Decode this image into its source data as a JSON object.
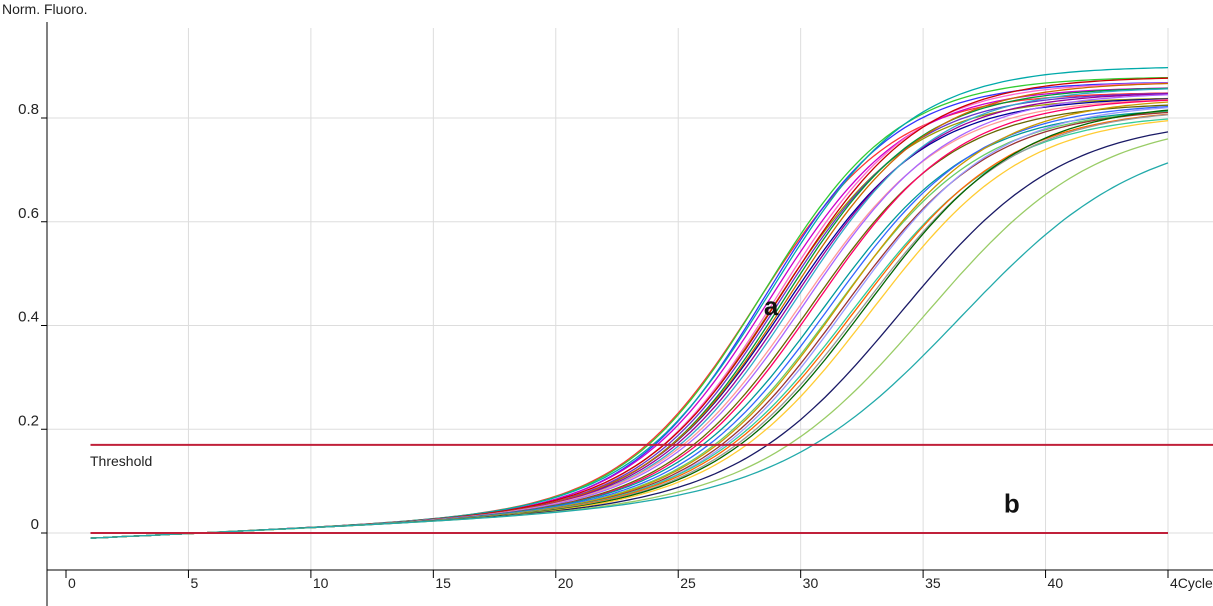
{
  "chart_data": {
    "type": "line",
    "ylabel": "Norm. Fluoro.",
    "xlabel": "Cycle",
    "xlim": [
      0,
      45
    ],
    "ylim": [
      -0.02,
      0.92
    ],
    "x_ticks": [
      0,
      5,
      10,
      15,
      20,
      25,
      30,
      35,
      40,
      45
    ],
    "x_tick_labels": [
      "0",
      "5",
      "10",
      "15",
      "20",
      "25",
      "30",
      "35",
      "40",
      "4Cycle"
    ],
    "y_ticks": [
      0,
      0.2,
      0.4,
      0.6,
      0.8
    ],
    "y_tick_labels": [
      "0",
      "0.2",
      "0.4",
      "0.6",
      "0.8"
    ],
    "grid": true,
    "threshold": {
      "label": "Threshold",
      "value": 0.17,
      "color": "#c0203a"
    },
    "baseline_line": {
      "value": 0.0,
      "color": "#c0203a"
    },
    "annotations": [
      {
        "text": "a",
        "x": 28.5,
        "y": 0.42
      },
      {
        "text": "b",
        "x": 38.3,
        "y": 0.04
      }
    ],
    "curves_x_range": [
      1,
      45
    ],
    "series": [
      {
        "ct": 24.8,
        "max": 0.85,
        "k": 0.36,
        "color": "#ff3333"
      },
      {
        "ct": 25.0,
        "max": 0.88,
        "k": 0.36,
        "color": "#33cc33"
      },
      {
        "ct": 25.1,
        "max": 0.87,
        "k": 0.37,
        "color": "#3333ff"
      },
      {
        "ct": 25.3,
        "max": 0.86,
        "k": 0.36,
        "color": "#cc00cc"
      },
      {
        "ct": 25.4,
        "max": 0.9,
        "k": 0.35,
        "color": "#00aaaa"
      },
      {
        "ct": 25.5,
        "max": 0.84,
        "k": 0.36,
        "color": "#999900"
      },
      {
        "ct": 25.6,
        "max": 0.87,
        "k": 0.36,
        "color": "#ff66cc"
      },
      {
        "ct": 25.7,
        "max": 0.85,
        "k": 0.36,
        "color": "#6633cc"
      },
      {
        "ct": 25.8,
        "max": 0.88,
        "k": 0.35,
        "color": "#cc0000"
      },
      {
        "ct": 25.9,
        "max": 0.86,
        "k": 0.36,
        "color": "#009933"
      },
      {
        "ct": 26.0,
        "max": 0.84,
        "k": 0.35,
        "color": "#000099"
      },
      {
        "ct": 26.1,
        "max": 0.87,
        "k": 0.35,
        "color": "#cc6600"
      },
      {
        "ct": 26.2,
        "max": 0.85,
        "k": 0.35,
        "color": "#990099"
      },
      {
        "ct": 26.4,
        "max": 0.86,
        "k": 0.35,
        "color": "#33aacc"
      },
      {
        "ct": 26.6,
        "max": 0.84,
        "k": 0.34,
        "color": "#ff9999"
      },
      {
        "ct": 26.8,
        "max": 0.85,
        "k": 0.34,
        "color": "#aa66ff"
      },
      {
        "ct": 27.0,
        "max": 0.83,
        "k": 0.34,
        "color": "#666600"
      },
      {
        "ct": 27.2,
        "max": 0.84,
        "k": 0.34,
        "color": "#ff0066"
      },
      {
        "ct": 27.5,
        "max": 0.82,
        "k": 0.33,
        "color": "#009999"
      },
      {
        "ct": 27.8,
        "max": 0.83,
        "k": 0.33,
        "color": "#3366ff"
      },
      {
        "ct": 28.0,
        "max": 0.82,
        "k": 0.33,
        "color": "#66cc66"
      },
      {
        "ct": 28.2,
        "max": 0.84,
        "k": 0.33,
        "color": "#cc9900"
      },
      {
        "ct": 28.3,
        "max": 0.82,
        "k": 0.33,
        "color": "#993333"
      },
      {
        "ct": 28.5,
        "max": 0.83,
        "k": 0.33,
        "color": "#9999ff"
      },
      {
        "ct": 28.7,
        "max": 0.81,
        "k": 0.32,
        "color": "#33cc99"
      },
      {
        "ct": 28.9,
        "max": 0.82,
        "k": 0.32,
        "color": "#ff6600"
      },
      {
        "ct": 29.1,
        "max": 0.82,
        "k": 0.32,
        "color": "#999999"
      },
      {
        "ct": 29.3,
        "max": 0.83,
        "k": 0.32,
        "color": "#006600"
      },
      {
        "ct": 29.5,
        "max": 0.81,
        "k": 0.32,
        "color": "#ffcc33"
      },
      {
        "ct": 30.7,
        "max": 0.8,
        "k": 0.3,
        "color": "#1a1a66"
      },
      {
        "ct": 31.8,
        "max": 0.8,
        "k": 0.29,
        "color": "#99cc66"
      },
      {
        "ct": 33.2,
        "max": 0.78,
        "k": 0.27,
        "color": "#22aaaa"
      }
    ]
  }
}
